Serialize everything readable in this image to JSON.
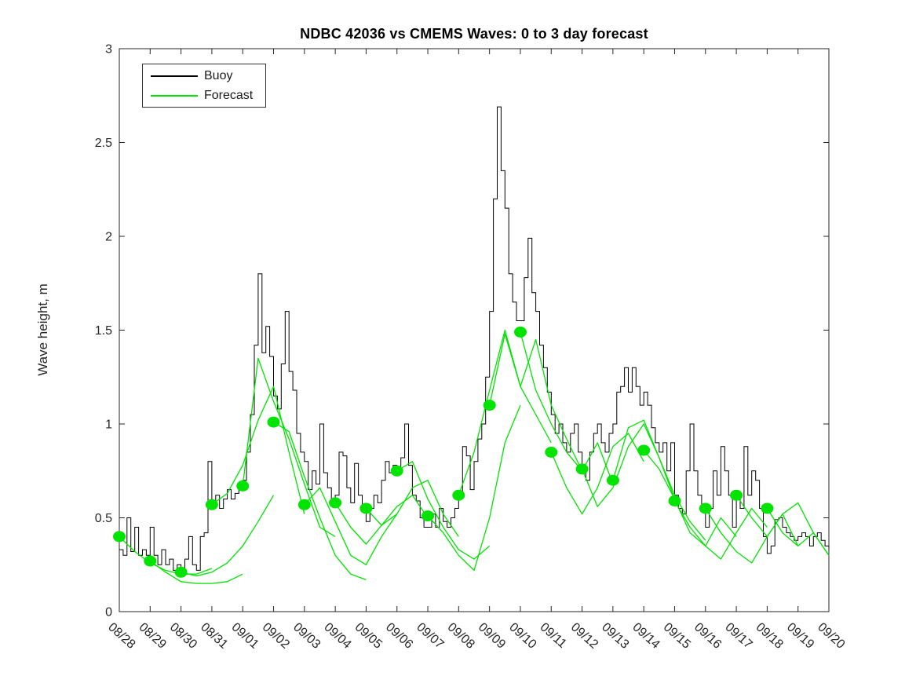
{
  "figure": {
    "title": "NDBC 42036 vs CMEMS Waves: 0 to 3 day forecast",
    "ylabel": "Wave height, m"
  },
  "legend": {
    "position": "top-left",
    "entries": [
      {
        "label": "Buoy",
        "color": "#000000"
      },
      {
        "label": "Forecast",
        "color": "#00e400"
      }
    ]
  },
  "chart_data": {
    "type": "line",
    "title": "NDBC 42036 vs CMEMS Waves: 0 to 3 day forecast",
    "xlabel": "",
    "ylabel": "Wave height, m",
    "ylim": [
      0,
      3
    ],
    "yticks": [
      0,
      0.5,
      1,
      1.5,
      2,
      2.5,
      3
    ],
    "ytick_labels": [
      "0",
      "0.5",
      "1",
      "1.5",
      "2",
      "2.5",
      "3"
    ],
    "x_tick_labels": [
      "08/28",
      "08/29",
      "08/30",
      "08/31",
      "09/01",
      "09/02",
      "09/03",
      "09/04",
      "09/05",
      "09/06",
      "09/07",
      "09/08",
      "09/09",
      "09/10",
      "09/11",
      "09/12",
      "09/13",
      "09/14",
      "09/15",
      "09/16",
      "09/17",
      "09/18",
      "09/19",
      "09/20"
    ],
    "x_tick_angle_deg": 42,
    "grid": false,
    "legend_position": "top-left",
    "series": {
      "buoy": {
        "name": "Buoy",
        "color": "#000000",
        "render": "steps",
        "start_day": 0,
        "step_days": 0.125,
        "values": [
          0.33,
          0.3,
          0.5,
          0.32,
          0.45,
          0.3,
          0.33,
          0.3,
          0.45,
          0.3,
          0.25,
          0.33,
          0.25,
          0.28,
          0.22,
          0.25,
          0.2,
          0.28,
          0.4,
          0.25,
          0.22,
          0.4,
          0.42,
          0.8,
          0.55,
          0.62,
          0.55,
          0.6,
          0.65,
          0.6,
          0.63,
          0.65,
          0.7,
          0.85,
          1.05,
          1.42,
          1.8,
          1.38,
          1.52,
          1.36,
          1.15,
          1.08,
          1.32,
          1.6,
          1.28,
          1.18,
          0.95,
          0.85,
          0.8,
          0.65,
          0.75,
          0.68,
          1.0,
          0.74,
          0.66,
          0.6,
          0.62,
          0.85,
          0.83,
          0.66,
          0.58,
          0.79,
          0.62,
          0.55,
          0.48,
          0.55,
          0.62,
          0.58,
          0.7,
          0.8,
          0.74,
          0.78,
          0.75,
          0.82,
          1.0,
          0.78,
          0.62,
          0.59,
          0.5,
          0.45,
          0.45,
          0.52,
          0.45,
          0.55,
          0.48,
          0.45,
          0.5,
          0.55,
          0.62,
          0.88,
          0.83,
          0.65,
          0.8,
          0.92,
          1.0,
          1.25,
          1.6,
          2.2,
          2.69,
          2.35,
          2.15,
          1.8,
          1.65,
          1.55,
          1.55,
          1.78,
          1.99,
          1.7,
          1.6,
          1.42,
          1.3,
          1.17,
          1.05,
          0.95,
          1.0,
          0.9,
          0.85,
          0.95,
          1.0,
          0.85,
          0.75,
          0.7,
          0.85,
          0.95,
          1.0,
          0.9,
          0.85,
          0.95,
          1.0,
          1.17,
          1.2,
          1.3,
          1.17,
          1.3,
          1.2,
          1.1,
          1.17,
          1.1,
          0.98,
          0.9,
          0.85,
          0.9,
          0.75,
          0.9,
          0.62,
          0.55,
          0.52,
          0.75,
          1.0,
          0.75,
          0.62,
          0.55,
          0.45,
          0.55,
          0.75,
          0.62,
          0.88,
          0.75,
          0.62,
          0.45,
          0.6,
          0.55,
          0.88,
          0.62,
          0.75,
          0.7,
          0.55,
          0.4,
          0.31,
          0.35,
          0.49,
          0.5,
          0.45,
          0.42,
          0.4,
          0.38,
          0.4,
          0.42,
          0.4,
          0.35,
          0.4,
          0.42,
          0.38,
          0.35,
          0.33
        ]
      },
      "forecasts": {
        "name": "Forecast",
        "color": "#00e400",
        "step_days": 0.5,
        "runs": [
          {
            "start_day": 0,
            "values": [
              0.4,
              0.32,
              0.26,
              0.22,
              0.2,
              0.2,
              0.23
            ]
          },
          {
            "start_day": 1,
            "values": [
              0.27,
              0.21,
              0.16,
              0.15,
              0.15,
              0.16,
              0.2
            ]
          },
          {
            "start_day": 2,
            "values": [
              0.21,
              0.19,
              0.21,
              0.26,
              0.35,
              0.48,
              0.62
            ]
          },
          {
            "start_day": 3,
            "values": [
              0.57,
              0.63,
              0.78,
              1.02,
              1.2,
              0.85,
              0.52
            ]
          },
          {
            "start_day": 4,
            "values": [
              0.67,
              1.35,
              1.12,
              0.92,
              0.68,
              0.45,
              0.4
            ]
          },
          {
            "start_day": 5,
            "values": [
              1.01,
              0.96,
              0.72,
              0.5,
              0.3,
              0.2,
              0.17
            ]
          },
          {
            "start_day": 6,
            "values": [
              0.57,
              0.66,
              0.48,
              0.3,
              0.25,
              0.4,
              0.52
            ]
          },
          {
            "start_day": 7,
            "values": [
              0.58,
              0.45,
              0.36,
              0.46,
              0.56,
              0.62,
              0.5
            ]
          },
          {
            "start_day": 8,
            "values": [
              0.55,
              0.46,
              0.52,
              0.66,
              0.7,
              0.52,
              0.4
            ]
          },
          {
            "start_day": 9,
            "values": [
              0.75,
              0.8,
              0.6,
              0.45,
              0.33,
              0.28,
              0.35
            ]
          },
          {
            "start_day": 10,
            "values": [
              0.51,
              0.42,
              0.3,
              0.22,
              0.5,
              0.9,
              1.1
            ]
          },
          {
            "start_day": 11,
            "values": [
              0.62,
              0.85,
              1.18,
              1.5,
              1.2,
              1.05,
              0.9
            ]
          },
          {
            "start_day": 12,
            "values": [
              1.1,
              1.48,
              1.2,
              1.45,
              1.1,
              0.92,
              0.75
            ]
          },
          {
            "start_day": 13,
            "values": [
              1.49,
              1.18,
              1.0,
              0.85,
              0.75,
              0.9,
              0.68
            ]
          },
          {
            "start_day": 14,
            "values": [
              0.85,
              0.66,
              0.52,
              0.66,
              0.88,
              0.95,
              0.8
            ]
          },
          {
            "start_day": 15,
            "values": [
              0.76,
              0.56,
              0.66,
              0.88,
              1.0,
              0.82,
              0.6
            ]
          },
          {
            "start_day": 16,
            "values": [
              0.7,
              0.98,
              1.02,
              0.82,
              0.62,
              0.48,
              0.38
            ]
          },
          {
            "start_day": 17,
            "values": [
              0.86,
              0.76,
              0.6,
              0.42,
              0.35,
              0.5,
              0.4
            ]
          },
          {
            "start_day": 18,
            "values": [
              0.59,
              0.45,
              0.35,
              0.28,
              0.42,
              0.55,
              0.45
            ]
          },
          {
            "start_day": 19,
            "values": [
              0.55,
              0.42,
              0.32,
              0.26,
              0.4,
              0.52,
              0.35
            ]
          },
          {
            "start_day": 20,
            "values": [
              0.62,
              0.5,
              0.4,
              0.52,
              0.58,
              0.42,
              0.3
            ]
          },
          {
            "start_day": 21,
            "values": [
              0.55,
              0.42,
              0.35,
              0.42,
              0.3
            ]
          }
        ]
      },
      "forecast_start_points": {
        "name": "Forecast initialization points",
        "color": "#00e400",
        "days": [
          0,
          1,
          2,
          3,
          4,
          5,
          6,
          7,
          8,
          9,
          10,
          11,
          12,
          13,
          14,
          15,
          16,
          17,
          18,
          19,
          20,
          21
        ],
        "values": [
          0.4,
          0.27,
          0.21,
          0.57,
          0.67,
          1.01,
          0.57,
          0.58,
          0.55,
          0.75,
          0.51,
          0.62,
          1.1,
          1.49,
          0.85,
          0.76,
          0.7,
          0.86,
          0.59,
          0.55,
          0.62,
          0.55
        ]
      }
    }
  }
}
